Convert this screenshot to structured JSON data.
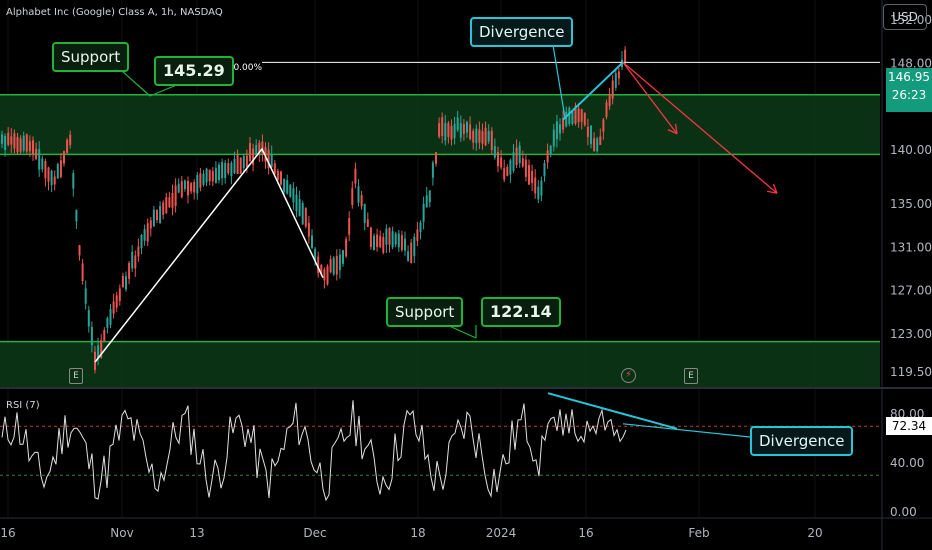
{
  "header": {
    "title": "Alphabet Inc (Google) Class A, 1h, NASDAQ",
    "currency": "USD"
  },
  "price_label": {
    "price": "146.95",
    "countdown": "26:23"
  },
  "level_label": "100.00%",
  "annotations": {
    "support_top": "Support",
    "support_top_value": "145.29",
    "support_bottom": "Support",
    "support_bottom_value": "122.14",
    "divergence_price": "Divergence",
    "divergence_rsi": "Divergence"
  },
  "markers": {
    "earnings_1": "E",
    "earnings_2": "E",
    "dividend": "⚡"
  },
  "rsi": {
    "title": "RSI (7)",
    "value": "72.34"
  },
  "colors": {
    "background": "#000000",
    "up": "#26a69a",
    "down": "#ef5350",
    "support_zone": "#21b239",
    "divergence": "#26c6da",
    "projection": "#f23645"
  },
  "chart_data": [
    {
      "type": "candlestick",
      "title": "Alphabet Inc (Google) Class A, 1h, NASDAQ",
      "x_ticks": [
        "16",
        "Nov",
        "13",
        "Dec",
        "18",
        "2024",
        "16",
        "Feb",
        "20"
      ],
      "y_ticks": [
        152.0,
        148.0,
        144.0,
        140.0,
        135.0,
        131.0,
        127.0,
        123.0,
        119.5
      ],
      "ylim": [
        118.0,
        153.0
      ],
      "last_price": 146.95,
      "support_zones": [
        {
          "label": "Support",
          "value": 145.29,
          "range": [
            139.6,
            145.1
          ]
        },
        {
          "label": "Support",
          "value": 122.14,
          "range": [
            117.6,
            122.3
          ]
        }
      ],
      "level_line": {
        "label": "100.00%",
        "value": 148.1
      },
      "swing_path": [
        {
          "x": "Nov 3",
          "y": 120.4
        },
        {
          "x": "Nov 24",
          "y": 140.1
        },
        {
          "x": "Dec 1",
          "y": 128.2
        }
      ],
      "divergence_line": {
        "x": [
          "Jan 11",
          "Jan 19"
        ],
        "y": [
          142.8,
          148.1
        ]
      },
      "projection_arrows": [
        {
          "from": [
            "Jan 19",
            148.1
          ],
          "to": [
            "Jan 30",
            141.5
          ]
        },
        {
          "from": [
            "Jan 19",
            148.1
          ],
          "to": [
            "Feb 6",
            136.0
          ]
        }
      ]
    },
    {
      "type": "line",
      "title": "RSI (7)",
      "y_ticks": [
        80.0,
        40.0,
        0.0
      ],
      "ylim": [
        0,
        100
      ],
      "levels": [
        70,
        30
      ],
      "last_value": 72.34,
      "divergence_line": {
        "x": [
          "Jan 10",
          "Jan 30"
        ],
        "y": [
          97,
          68
        ]
      }
    }
  ]
}
